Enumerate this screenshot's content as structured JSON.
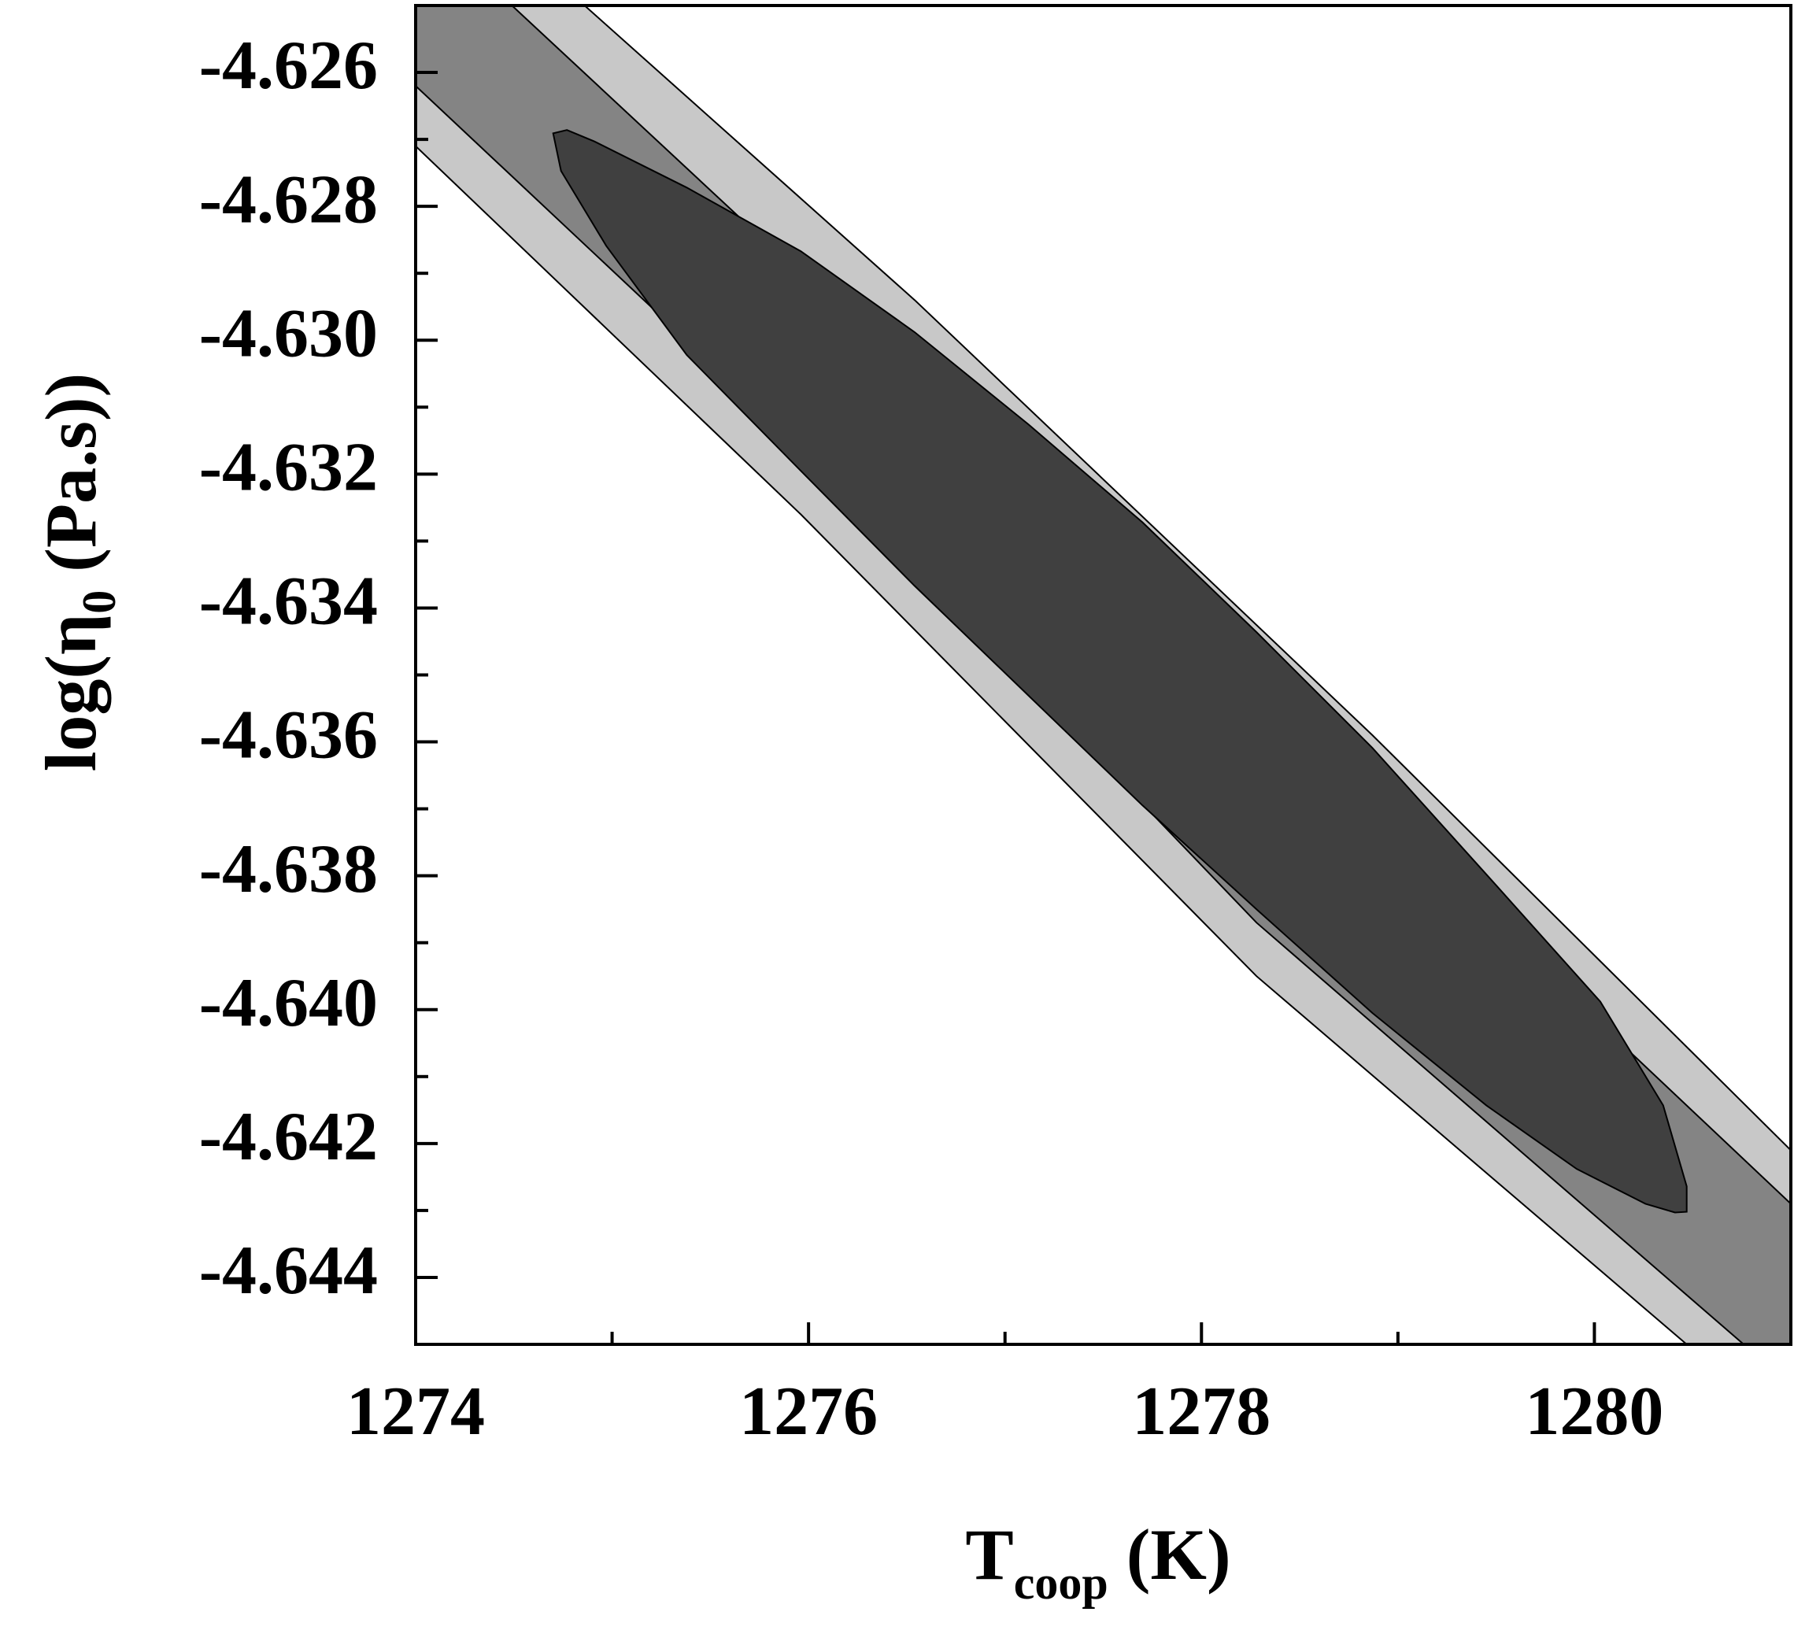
{
  "chart_data": {
    "type": "contour",
    "x_label": {
      "main": "T",
      "sub": "coop",
      "rest": " (K)"
    },
    "y_label": {
      "main": "log(η",
      "sub": "0",
      "rest": " (Pa.s))"
    },
    "xlim": [
      1274,
      1281
    ],
    "ylim": [
      -4.645,
      -4.625
    ],
    "xticks": [
      1274,
      1276,
      1278,
      1280
    ],
    "xminor_ticks": [
      1275,
      1277,
      1279
    ],
    "yticks": [
      -4.626,
      -4.628,
      {
        "value": -4.63,
        "label": "-4.630"
      },
      -4.632,
      -4.634,
      -4.636,
      -4.638,
      {
        "value": -4.64,
        "label": "-4.640"
      },
      -4.642,
      -4.644
    ],
    "yminor_ticks": [
      -4.627,
      -4.629,
      -4.631,
      -4.633,
      -4.635,
      -4.637,
      -4.639,
      -4.641,
      -4.643
    ],
    "regions": [
      {
        "color": "#c8c8c8",
        "x": [
          1274,
          1274.86,
          1276.54,
          1278.87,
          1281,
          1281,
          1280.47,
          1278.28,
          1275.96,
          1274
        ],
        "y": [
          -4.625,
          -4.625,
          -4.6294,
          -4.6359,
          -4.6421,
          -4.645,
          -4.645,
          -4.6395,
          -4.6326,
          -4.6271
        ]
      },
      {
        "color": "#848484",
        "x": [
          1274,
          1274.49,
          1276.54,
          1278.87,
          1281,
          1281,
          1280.76,
          1278.28,
          1275.96,
          1274
        ],
        "y": [
          -4.625,
          -4.625,
          -4.6306,
          -4.637,
          -4.6429,
          -4.645,
          -4.645,
          -4.6387,
          -4.6316,
          -4.6262
        ]
      },
      {
        "color": "#404040",
        "x": [
          1274.7,
          1274.77,
          1274.91,
          1275.38,
          1275.96,
          1276.54,
          1277.12,
          1277.7,
          1278.28,
          1278.87,
          1279.45,
          1280.03,
          1280.35,
          1280.47,
          1280.47,
          1280.41,
          1280.26,
          1279.91,
          1279.45,
          1278.87,
          1278.28,
          1277.7,
          1277.12,
          1276.54,
          1275.96,
          1275.38,
          1274.97,
          1274.74
        ],
        "y": [
          -4.62691,
          -4.62686,
          -4.62703,
          -4.62772,
          -4.62867,
          -4.62988,
          -4.63126,
          -4.63272,
          -4.63436,
          -4.63609,
          -4.63798,
          -4.63988,
          -4.64143,
          -4.64264,
          -4.64302,
          -4.64303,
          -4.6429,
          -4.64238,
          -4.64143,
          -4.64005,
          -4.6385,
          -4.63695,
          -4.63531,
          -4.63367,
          -4.63195,
          -4.63022,
          -4.62859,
          -4.62747
        ]
      }
    ]
  }
}
